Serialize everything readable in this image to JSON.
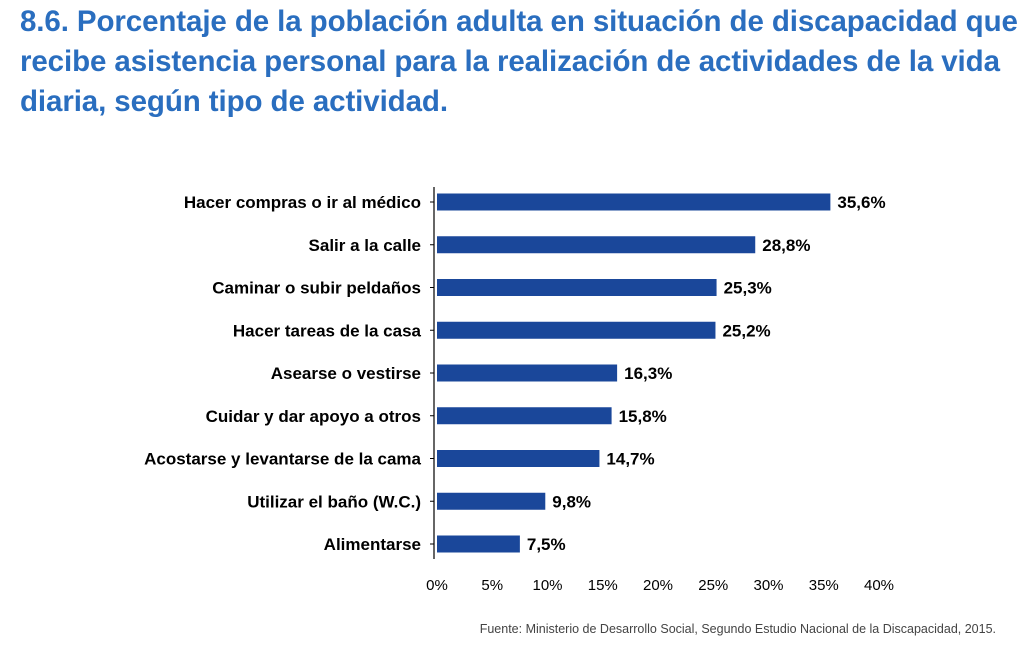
{
  "title": "8.6. Porcentaje de la población adulta en situación de discapacidad que recibe asistencia personal para la realización de actividades de la vida diaria, según tipo de actividad.",
  "source": "Fuente: Ministerio de Desarrollo Social, Segundo Estudio Nacional de la Discapacidad, 2015.",
  "colors": {
    "title": "#2a6ebf",
    "bar": "#1a479a",
    "axis": "#000000"
  },
  "chart_data": {
    "type": "bar",
    "orientation": "horizontal",
    "title": "8.6. Porcentaje de la población adulta en situación de discapacidad que recibe asistencia personal para la realización de actividades de la vida diaria, según tipo de actividad.",
    "xlabel": "",
    "ylabel": "",
    "xlim": [
      0,
      40
    ],
    "grid": false,
    "legend": "none",
    "categories": [
      "Hacer compras o ir al médico",
      "Salir a la calle",
      "Caminar o subir peldaños",
      "Hacer tareas de la casa",
      "Asearse o vestirse",
      "Cuidar y dar apoyo a otros",
      "Acostarse y levantarse de la cama",
      "Utilizar el baño (W.C.)",
      "Alimentarse"
    ],
    "values": [
      35.6,
      28.8,
      25.3,
      25.2,
      16.3,
      15.8,
      14.7,
      9.8,
      7.5
    ],
    "value_labels": [
      "35,6%",
      "28,8%",
      "25,3%",
      "25,2%",
      "16,3%",
      "15,8%",
      "14,7%",
      "9,8%",
      "7,5%"
    ],
    "ticks": [
      0,
      5,
      10,
      15,
      20,
      25,
      30,
      35,
      40
    ],
    "tick_labels": [
      "0%",
      "5%",
      "10%",
      "15%",
      "20%",
      "25%",
      "30%",
      "35%",
      "40%"
    ]
  }
}
